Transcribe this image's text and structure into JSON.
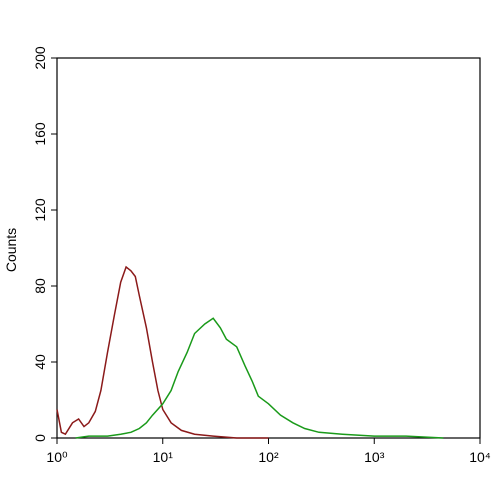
{
  "chart_data": {
    "type": "line",
    "ylabel": "Counts",
    "xscale": "log",
    "xlim": [
      1,
      10000
    ],
    "ylim": [
      0,
      200
    ],
    "xticks": [
      {
        "value": 1,
        "label": "10⁰"
      },
      {
        "value": 10,
        "label": "10¹"
      },
      {
        "value": 100,
        "label": "10²"
      },
      {
        "value": 1000,
        "label": "10³"
      },
      {
        "value": 10000,
        "label": "10⁴"
      }
    ],
    "yticks": [
      0,
      40,
      80,
      120,
      160,
      200
    ],
    "series": [
      {
        "color": "#8b1a1a",
        "x": [
          1.0,
          1.1,
          1.2,
          1.4,
          1.6,
          1.8,
          2.0,
          2.3,
          2.6,
          3.0,
          3.5,
          4.0,
          4.5,
          5.0,
          5.5,
          6.0,
          7.0,
          8.0,
          9.0,
          10,
          12,
          15,
          20,
          30,
          50,
          100
        ],
        "values": [
          15,
          3,
          2,
          8,
          10,
          6,
          8,
          14,
          25,
          45,
          65,
          82,
          90,
          88,
          85,
          75,
          58,
          40,
          25,
          15,
          8,
          4,
          2,
          1,
          0,
          0
        ]
      },
      {
        "color": "#1a9a1a",
        "x": [
          1.5,
          2,
          3,
          4,
          5,
          6,
          7,
          8,
          10,
          12,
          14,
          17,
          20,
          25,
          30,
          35,
          40,
          50,
          60,
          70,
          80,
          100,
          130,
          170,
          220,
          300,
          500,
          1000,
          2000,
          4500
        ],
        "values": [
          0,
          1,
          1,
          2,
          3,
          5,
          8,
          12,
          18,
          25,
          35,
          45,
          55,
          60,
          63,
          58,
          52,
          48,
          38,
          30,
          22,
          18,
          12,
          8,
          5,
          3,
          2,
          1,
          1,
          0
        ]
      }
    ]
  }
}
